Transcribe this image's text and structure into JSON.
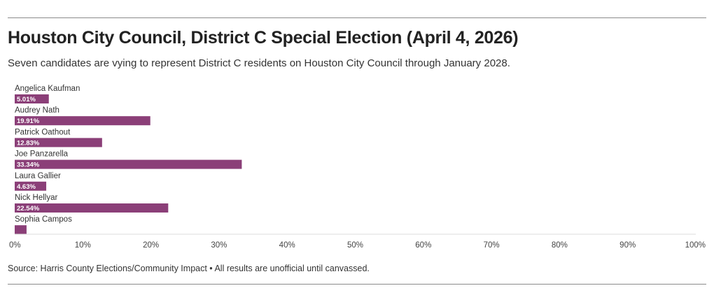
{
  "header": {
    "title": "Houston City Council, District C Special Election (April 4, 2026)",
    "subtitle": "Seven candidates are vying to represent District C residents on Houston City Council through January 2028."
  },
  "footer": {
    "source": "Source: Harris County Elections/Community Impact • All results are unofficial until canvassed."
  },
  "colors": {
    "bar": "#8b3f78",
    "axis": "#dddddd"
  },
  "chart_data": {
    "type": "bar",
    "orientation": "horizontal",
    "title": "Houston City Council, District C Special Election (April 4, 2026)",
    "subtitle": "Seven candidates are vying to represent District C residents on Houston City Council through January 2028.",
    "categories": [
      "Angelica Kaufman",
      "Audrey Nath",
      "Patrick Oathout",
      "Joe Panzarella",
      "Laura Gallier",
      "Nick Hellyar",
      "Sophia Campos"
    ],
    "values": [
      5.01,
      19.91,
      12.83,
      33.34,
      4.63,
      22.54,
      1.74
    ],
    "value_labels": [
      "5.01%",
      "19.91%",
      "12.83%",
      "33.34%",
      "4.63%",
      "22.54%",
      ""
    ],
    "xlim": [
      0,
      100
    ],
    "xticks": [
      0,
      10,
      20,
      30,
      40,
      50,
      60,
      70,
      80,
      90,
      100
    ],
    "xtick_labels": [
      "0%",
      "10%",
      "20%",
      "30%",
      "40%",
      "50%",
      "60%",
      "70%",
      "80%",
      "90%",
      "100%"
    ],
    "xlabel": "",
    "ylabel": "",
    "grid": false
  }
}
